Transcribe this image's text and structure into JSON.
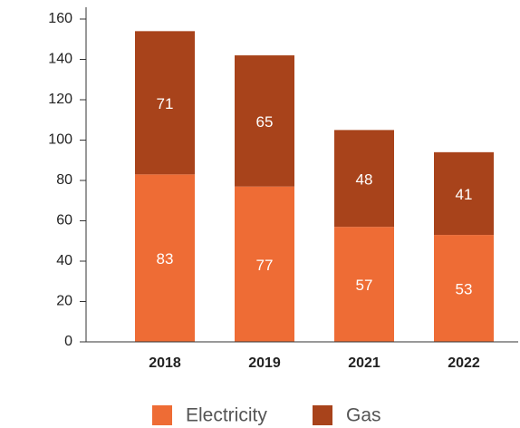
{
  "chart_data": {
    "type": "bar",
    "stacked": true,
    "categories": [
      "2018",
      "2019",
      "2021",
      "2022"
    ],
    "series": [
      {
        "name": "Electricity",
        "color": "#ee6c35",
        "values": [
          83,
          77,
          57,
          53
        ]
      },
      {
        "name": "Gas",
        "color": "#a8431b",
        "values": [
          71,
          65,
          48,
          41
        ]
      }
    ],
    "ylim": [
      0,
      160
    ],
    "yticks": [
      0,
      20,
      40,
      60,
      80,
      100,
      120,
      140,
      160
    ],
    "grid": false,
    "legend": "bottom"
  }
}
